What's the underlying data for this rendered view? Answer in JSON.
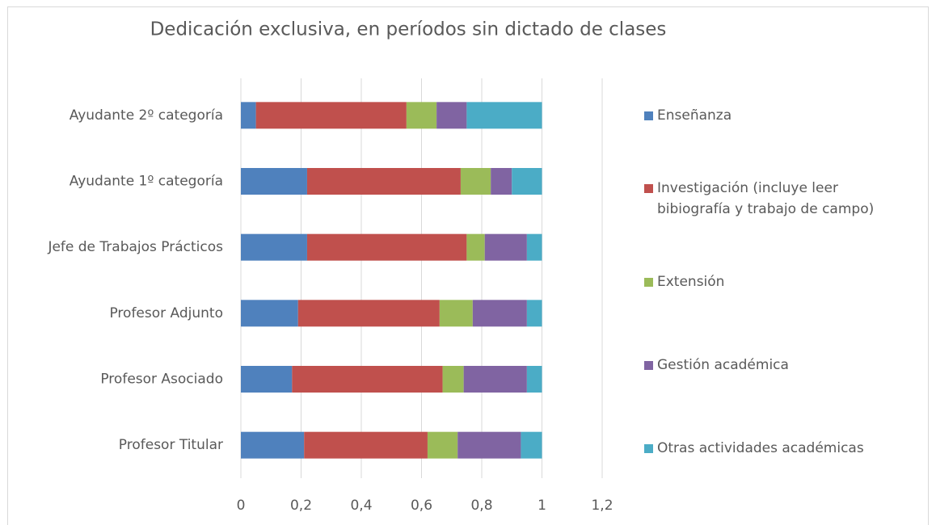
{
  "chart_data": {
    "type": "stacked-barh",
    "title": "Dedicación exclusiva, en períodos sin dictado de clases",
    "categories": [
      "Profesor Titular",
      "Profesor Asociado",
      "Profesor Adjunto",
      "Jefe de Trabajos Prácticos",
      "Ayudante 1º categoría",
      "Ayudante 2º categoría"
    ],
    "series": [
      {
        "name": "Enseñanza",
        "color": "#4f81bd",
        "values": [
          0.21,
          0.17,
          0.19,
          0.22,
          0.22,
          0.05
        ]
      },
      {
        "name": "Investigación (incluye leer bibiografía y trabajo de campo)",
        "color": "#c0504d",
        "values": [
          0.41,
          0.5,
          0.47,
          0.53,
          0.51,
          0.5
        ]
      },
      {
        "name": "Extensión",
        "color": "#9bbb59",
        "values": [
          0.1,
          0.07,
          0.11,
          0.06,
          0.1,
          0.1
        ]
      },
      {
        "name": "Gestión académica",
        "color": "#8064a2",
        "values": [
          0.21,
          0.21,
          0.18,
          0.14,
          0.07,
          0.1
        ]
      },
      {
        "name": "Otras actividades académicas",
        "color": "#4bacc6",
        "values": [
          0.07,
          0.05,
          0.05,
          0.05,
          0.1,
          0.25
        ]
      }
    ],
    "xlim": [
      0,
      1.2
    ],
    "xticks": [
      0,
      {
        "value": 0.2,
        "label": "0,2"
      },
      {
        "value": 0.4,
        "label": "0,4"
      },
      {
        "value": 0.6,
        "label": "0,6"
      },
      {
        "value": 0.8,
        "label": "0,8"
      },
      1,
      {
        "value": 1.2,
        "label": "1,2"
      }
    ],
    "grid": true,
    "legend": "right"
  }
}
